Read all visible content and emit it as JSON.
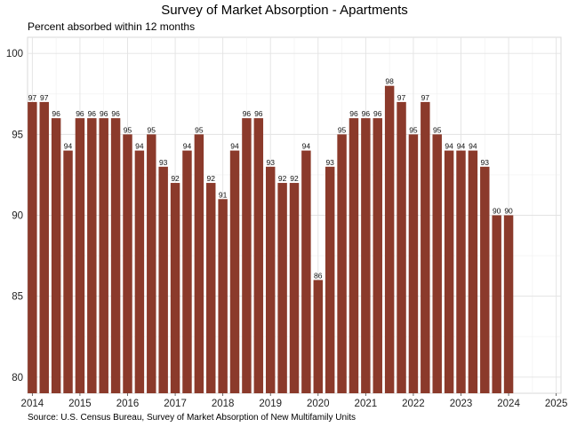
{
  "chart_data": {
    "type": "bar",
    "title": "Survey of Market Absorption - Apartments",
    "subtitle": "Percent absorbed within 12 months",
    "source": "Source: U.S. Census Bureau, Survey of Market Absorption of New Multifamily Units",
    "xlabel": "",
    "ylabel": "",
    "x_tick_labels": [
      "2014",
      "2015",
      "2016",
      "2017",
      "2018",
      "2019",
      "2020",
      "2021",
      "2022",
      "2023",
      "2024",
      "2025"
    ],
    "y_tick_labels": [
      "80",
      "85",
      "90",
      "95",
      "100"
    ],
    "xlim": [
      2013.9,
      2025.1
    ],
    "ylim": [
      79,
      101
    ],
    "grid": true,
    "legend": "none",
    "bar_color": "#8B3A2B",
    "data_labels": true,
    "x": [
      2014.0,
      2014.25,
      2014.5,
      2014.75,
      2015.0,
      2015.25,
      2015.5,
      2015.75,
      2016.0,
      2016.25,
      2016.5,
      2016.75,
      2017.0,
      2017.25,
      2017.5,
      2017.75,
      2018.0,
      2018.25,
      2018.5,
      2018.75,
      2019.0,
      2019.25,
      2019.5,
      2019.75,
      2020.0,
      2020.25,
      2020.5,
      2020.75,
      2021.0,
      2021.25,
      2021.5,
      2021.75,
      2022.0,
      2022.25,
      2022.5,
      2022.75,
      2023.0,
      2023.25,
      2023.5,
      2023.75,
      2024.0
    ],
    "values": [
      97,
      97,
      96,
      94,
      96,
      96,
      96,
      96,
      95,
      94,
      95,
      93,
      92,
      94,
      95,
      92,
      91,
      94,
      96,
      96,
      93,
      92,
      92,
      94,
      86,
      93,
      95,
      96,
      96,
      96,
      98,
      97,
      95,
      97,
      95,
      94,
      94,
      94,
      93,
      90,
      90
    ]
  }
}
